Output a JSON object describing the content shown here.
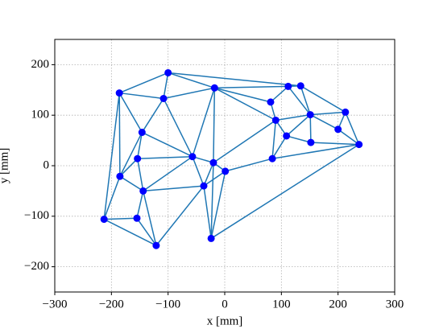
{
  "chart_data": {
    "type": "mesh",
    "x_label": "x [mm]",
    "y_label": "y [mm]",
    "xlim": [
      -300,
      300
    ],
    "ylim": [
      -250,
      250
    ],
    "xticks": [
      {
        "value": -300,
        "label": "−300"
      },
      {
        "value": -200,
        "label": "−200"
      },
      {
        "value": -100,
        "label": "−100"
      },
      0,
      100,
      200,
      300
    ],
    "yticks": [
      {
        "value": -200,
        "label": "−200"
      },
      {
        "value": -100,
        "label": "−100"
      },
      0,
      100,
      200
    ],
    "grid": true,
    "edge_color": "#1f77b4",
    "node_color": "#0000ff",
    "x": [
      -100,
      -186,
      -108,
      -18,
      112,
      134,
      81,
      151,
      213,
      90,
      200,
      109,
      152,
      237,
      -146,
      -154,
      -57,
      -20,
      1,
      84,
      -185,
      -144,
      -37,
      -213,
      -155,
      -24,
      -121
    ],
    "y": [
      184,
      144,
      133,
      154,
      157,
      158,
      126,
      101,
      106,
      90,
      72,
      59,
      46,
      42,
      66,
      14,
      18,
      6,
      -11,
      14,
      -21,
      -50,
      -40,
      -106,
      -104,
      -144,
      -158
    ],
    "edges": [
      [
        0,
        1
      ],
      [
        0,
        2
      ],
      [
        0,
        3
      ],
      [
        0,
        5
      ],
      [
        1,
        2
      ],
      [
        1,
        14
      ],
      [
        1,
        20
      ],
      [
        1,
        23
      ],
      [
        2,
        3
      ],
      [
        2,
        14
      ],
      [
        2,
        16
      ],
      [
        3,
        4
      ],
      [
        3,
        6
      ],
      [
        3,
        9
      ],
      [
        3,
        16
      ],
      [
        3,
        17
      ],
      [
        4,
        5
      ],
      [
        4,
        6
      ],
      [
        4,
        7
      ],
      [
        5,
        7
      ],
      [
        5,
        8
      ],
      [
        6,
        9
      ],
      [
        7,
        8
      ],
      [
        7,
        9
      ],
      [
        7,
        10
      ],
      [
        7,
        11
      ],
      [
        7,
        12
      ],
      [
        8,
        10
      ],
      [
        8,
        13
      ],
      [
        9,
        11
      ],
      [
        9,
        19
      ],
      [
        9,
        17
      ],
      [
        10,
        13
      ],
      [
        11,
        12
      ],
      [
        11,
        19
      ],
      [
        12,
        13
      ],
      [
        13,
        19
      ],
      [
        13,
        25
      ],
      [
        14,
        15
      ],
      [
        14,
        16
      ],
      [
        14,
        20
      ],
      [
        15,
        16
      ],
      [
        15,
        20
      ],
      [
        15,
        21
      ],
      [
        16,
        17
      ],
      [
        16,
        21
      ],
      [
        16,
        22
      ],
      [
        17,
        18
      ],
      [
        17,
        22
      ],
      [
        17,
        25
      ],
      [
        18,
        19
      ],
      [
        18,
        25
      ],
      [
        18,
        22
      ],
      [
        20,
        21
      ],
      [
        20,
        23
      ],
      [
        21,
        22
      ],
      [
        21,
        24
      ],
      [
        21,
        26
      ],
      [
        22,
        25
      ],
      [
        22,
        26
      ],
      [
        23,
        24
      ],
      [
        23,
        26
      ],
      [
        24,
        26
      ]
    ]
  }
}
